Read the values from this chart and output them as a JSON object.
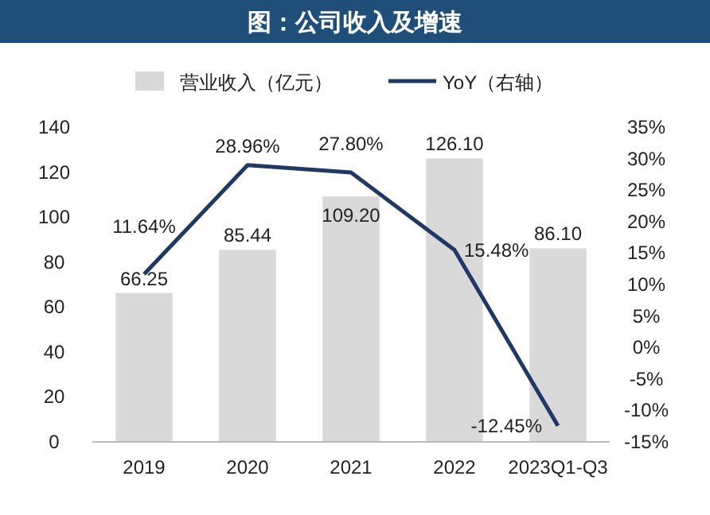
{
  "chart_data": {
    "type": "bar",
    "title": "图：公司收入及增速",
    "categories": [
      "2019",
      "2020",
      "2021",
      "2022",
      "2023Q1-Q3"
    ],
    "series": [
      {
        "name": "营业收入（亿元）",
        "color": "#d9d9d9",
        "values": [
          66.25,
          85.44,
          109.2,
          126.1,
          86.1
        ],
        "value_labels": [
          "66.25",
          "85.44",
          "109.20",
          "126.10",
          "86.10"
        ]
      },
      {
        "name": "YoY（右轴）",
        "type": "line",
        "axis": "y2",
        "color": "#1f3864",
        "values": [
          11.64,
          28.96,
          27.8,
          15.48,
          -12.45
        ],
        "value_labels": [
          "11.64%",
          "28.96%",
          "27.80%",
          "15.48%",
          "-12.45%"
        ]
      }
    ],
    "ylim": [
      0,
      140
    ],
    "yticks": [
      0,
      20,
      40,
      60,
      80,
      100,
      120,
      140
    ],
    "y2lim": [
      -15,
      35
    ],
    "y2ticks": [
      {
        "value": -15,
        "label": "-15%"
      },
      {
        "value": -10,
        "label": "-10%"
      },
      {
        "value": -5,
        "label": "-5%"
      },
      {
        "value": 0,
        "label": "0%"
      },
      {
        "value": 5,
        "label": "5%"
      },
      {
        "value": 10,
        "label": "10%"
      },
      {
        "value": 15,
        "label": "15%"
      },
      {
        "value": 20,
        "label": "20%"
      },
      {
        "value": 25,
        "label": "25%"
      },
      {
        "value": 30,
        "label": "30%"
      },
      {
        "value": 35,
        "label": "35%"
      }
    ],
    "legend": "top",
    "grid": false,
    "marker": "none"
  }
}
